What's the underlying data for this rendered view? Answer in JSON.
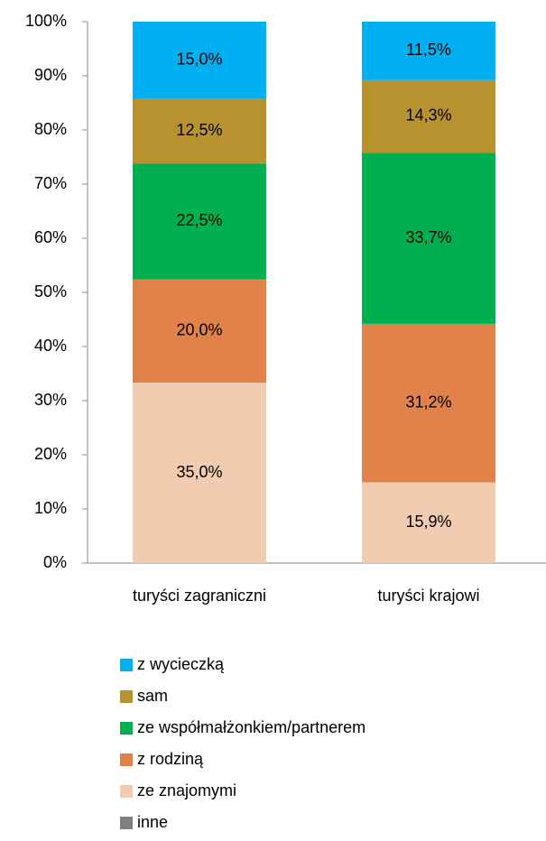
{
  "chart_data": {
    "type": "bar",
    "stacking": "percent",
    "categories": [
      "turyści zagraniczni",
      "turyści krajowi"
    ],
    "series": [
      {
        "name": "inne",
        "color": "#808080",
        "values": [
          0,
          0
        ]
      },
      {
        "name": "ze znajomymi",
        "color": "#f2ccb0",
        "values": [
          35.0,
          15.9
        ],
        "value_labels": [
          "35,0%",
          "15,9%"
        ]
      },
      {
        "name": "z rodziną",
        "color": "#e0824a",
        "values": [
          20.0,
          31.2
        ],
        "value_labels": [
          "20,0%",
          "31,2%"
        ]
      },
      {
        "name": "ze współmałżonkiem/partnerem",
        "color": "#00b050",
        "values": [
          22.5,
          33.7
        ],
        "value_labels": [
          "22,5%",
          "33,7%"
        ]
      },
      {
        "name": "sam",
        "color": "#b8922e",
        "values": [
          12.5,
          14.3
        ],
        "value_labels": [
          "12,5%",
          "14,3%"
        ]
      },
      {
        "name": "z wycieczką",
        "color": "#00b0f0",
        "values": [
          15.0,
          11.5
        ],
        "value_labels": [
          "15,0%",
          "11,5%"
        ]
      }
    ],
    "ylim": [
      0,
      100
    ],
    "yticks": [
      {
        "value": 0,
        "label": "0%"
      },
      {
        "value": 10,
        "label": "10%"
      },
      {
        "value": 20,
        "label": "20%"
      },
      {
        "value": 30,
        "label": "30%"
      },
      {
        "value": 40,
        "label": "40%"
      },
      {
        "value": 50,
        "label": "50%"
      },
      {
        "value": 60,
        "label": "60%"
      },
      {
        "value": 70,
        "label": "70%"
      },
      {
        "value": 80,
        "label": "80%"
      },
      {
        "value": 90,
        "label": "90%"
      },
      {
        "value": 100,
        "label": "100%"
      }
    ],
    "grid": false,
    "legend": "bottom"
  }
}
